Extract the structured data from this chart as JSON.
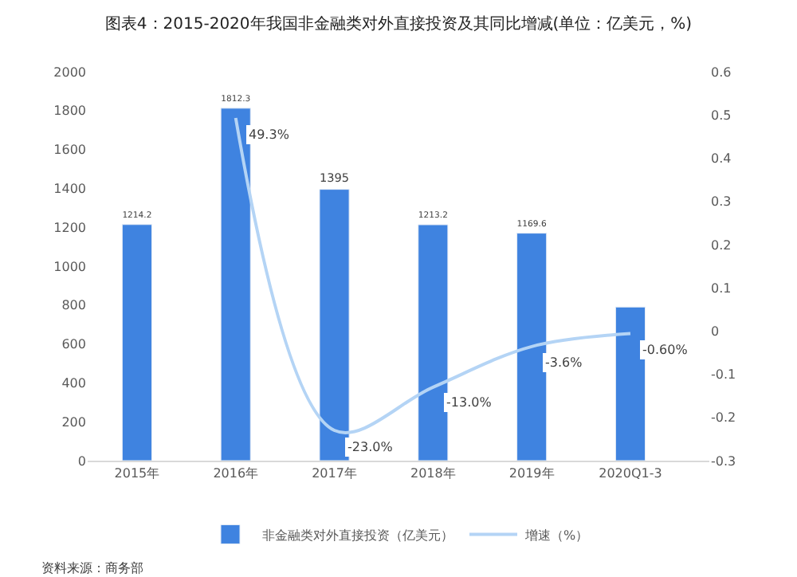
{
  "chart_data": {
    "type": "bar",
    "title": "图表4：2015-2020年我国非金融类对外直接投资及其同比增减(单位：亿美元，%)",
    "categories": [
      "2015年",
      "2016年",
      "2017年",
      "2018年",
      "2019年",
      "2020Q1-3"
    ],
    "series": [
      {
        "name": "非金融类对外直接投资（亿美元）",
        "color": "#3f83e0",
        "values": [
          1214.2,
          1812.3,
          1395,
          1213.2,
          1169.6,
          790
        ],
        "value_labels": [
          "1214.2",
          "1812.3",
          "1395",
          "1213.2",
          "1169.6",
          null
        ]
      },
      {
        "name": "增速（%）",
        "type": "line",
        "axis": "y2",
        "color": "#b4d4f5",
        "values": [
          null,
          0.493,
          -0.23,
          -0.13,
          -0.036,
          -0.006
        ],
        "value_labels": [
          null,
          "49.3%",
          "-23.0%",
          "-13.0%",
          "-3.6%",
          "-0.60%"
        ]
      }
    ],
    "ylim": [
      0,
      2000
    ],
    "yticks": [
      0,
      200,
      400,
      600,
      800,
      1000,
      1200,
      1400,
      1600,
      1800,
      2000
    ],
    "y2lim": [
      -0.3,
      0.6
    ],
    "y2ticks": [
      -0.3,
      -0.2,
      -0.1,
      0,
      0.1,
      0.2,
      0.3,
      0.4,
      0.5,
      0.6
    ],
    "legend": "bottom",
    "annotations": [
      "资料来源：商务部"
    ]
  }
}
